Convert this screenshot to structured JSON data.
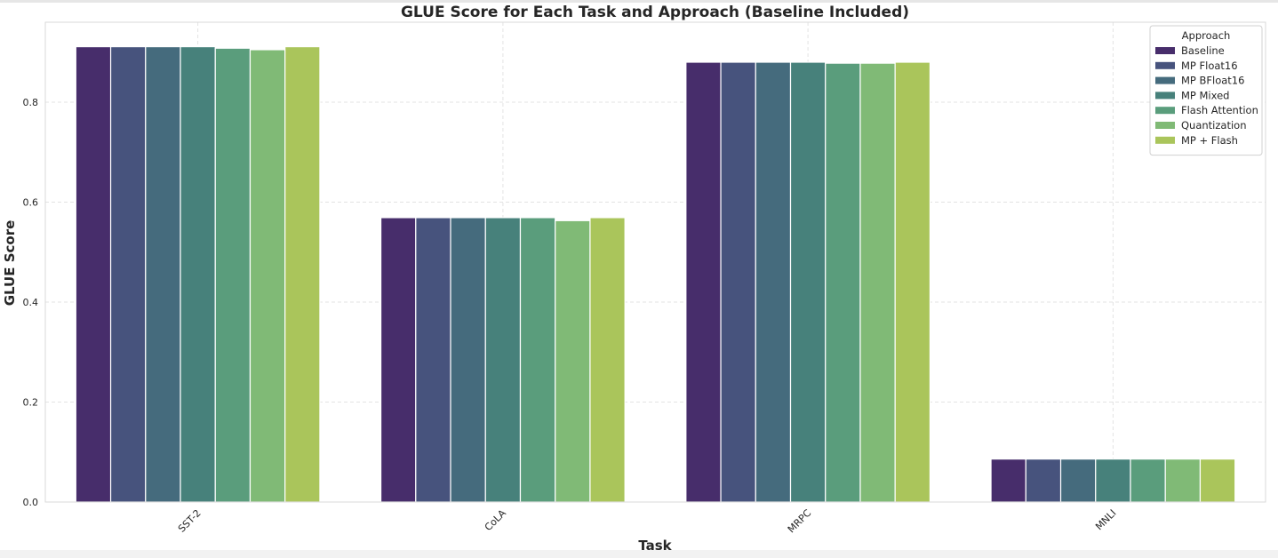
{
  "chart_data": {
    "type": "bar",
    "title": "GLUE Score for Each Task and Approach (Baseline Included)",
    "xlabel": "Task",
    "ylabel": "GLUE Score",
    "categories": [
      "SST-2",
      "CoLA",
      "MRPC",
      "MNLI"
    ],
    "ylim": [
      0,
      0.96
    ],
    "yticks": [
      "0.0",
      "0.2",
      "0.4",
      "0.6",
      "0.8"
    ],
    "grid": true,
    "legend": {
      "title": "Approach",
      "position": "top-right"
    },
    "series": [
      {
        "name": "Baseline",
        "color": "#472d6b",
        "values": [
          0.911,
          0.569,
          0.88,
          0.086
        ]
      },
      {
        "name": "MP Float16",
        "color": "#47537d",
        "values": [
          0.911,
          0.569,
          0.88,
          0.086
        ]
      },
      {
        "name": "MP BFloat16",
        "color": "#456b7d",
        "values": [
          0.911,
          0.569,
          0.88,
          0.086
        ]
      },
      {
        "name": "MP Mixed",
        "color": "#47817b",
        "values": [
          0.911,
          0.569,
          0.88,
          0.086
        ]
      },
      {
        "name": "Flash Attention",
        "color": "#5a9d7c",
        "values": [
          0.908,
          0.569,
          0.878,
          0.086
        ]
      },
      {
        "name": "Quantization",
        "color": "#80ba76",
        "values": [
          0.905,
          0.563,
          0.878,
          0.086
        ]
      },
      {
        "name": "MP + Flash",
        "color": "#aac55b",
        "values": [
          0.911,
          0.569,
          0.88,
          0.086
        ]
      }
    ]
  }
}
